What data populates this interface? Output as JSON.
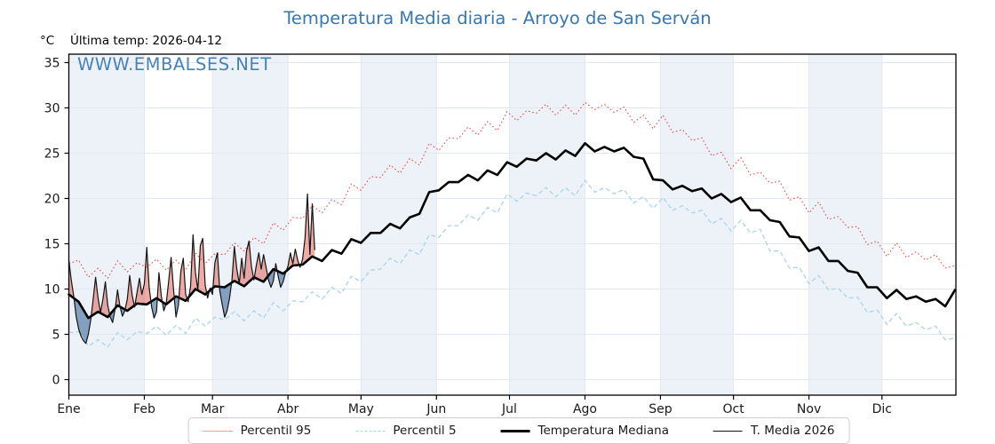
{
  "labels": {
    "unit": "°C",
    "last_temp": "Última temp: 2026-04-12",
    "watermark": "WWW.EMBALSES.NET"
  },
  "colors": {
    "title_blue": "#3877af",
    "p95_red": "#e8403a",
    "p5_blue": "#a9d4e8",
    "median_black": "#000000",
    "t2026_black": "#141414",
    "fill_above": "rgba(220,70,60,0.45)",
    "fill_below": "rgba(60,105,155,0.6)",
    "month_band": "#edf2f8",
    "gridline": "#e2e8ef"
  },
  "legend": {
    "items": [
      {
        "label": "Percentil 95",
        "style": "dotted-red"
      },
      {
        "label": "Percentil 5",
        "style": "dashed-lightblue"
      },
      {
        "label": "Temperatura Mediana",
        "style": "solid-thick-black"
      },
      {
        "label": "T. Media 2026",
        "style": "solid-thin-black"
      }
    ]
  },
  "chart_data": {
    "type": "line",
    "title": "Temperatura Media diaria - Arroyo de San Serván",
    "ylabel": "°C",
    "annotation": "Última temp: 2026-04-12",
    "grid": true,
    "legend_position": "bottom-center",
    "x_categories": [
      "Ene",
      "Feb",
      "Mar",
      "Abr",
      "May",
      "Jun",
      "Jul",
      "Ago",
      "Sep",
      "Oct",
      "Nov",
      "Dic"
    ],
    "month_start_days": [
      1,
      32,
      60,
      91,
      121,
      152,
      182,
      213,
      244,
      274,
      305,
      335
    ],
    "shaded_month_indices": [
      0,
      2,
      4,
      6,
      8,
      10
    ],
    "yticks": [
      0,
      5,
      10,
      15,
      20,
      25,
      30,
      35
    ],
    "ylim": [
      -1.7,
      35.9
    ],
    "xlim_days": [
      1,
      365
    ],
    "series": [
      {
        "name": "Percentil 95",
        "line_style": "dotted",
        "color": "#e8403a",
        "day_start": 1,
        "day_step": 4,
        "values": [
          12.8,
          13.2,
          11.3,
          12.3,
          11.2,
          13.1,
          11.9,
          12.9,
          12.4,
          13.3,
          12.1,
          13.2,
          12.1,
          14.0,
          12.8,
          13.9,
          13.8,
          15.1,
          14.2,
          15.7,
          15.0,
          17.3,
          16.5,
          17.9,
          17.8,
          19.2,
          18.4,
          19.9,
          19.3,
          21.6,
          20.9,
          22.4,
          22.3,
          23.7,
          22.8,
          24.4,
          23.7,
          26.1,
          25.3,
          26.7,
          26.6,
          27.9,
          27.0,
          28.5,
          27.5,
          29.6,
          28.6,
          29.7,
          29.4,
          30.4,
          29.2,
          30.3,
          29.2,
          30.6,
          29.8,
          30.4,
          29.5,
          30.1,
          28.4,
          29.2,
          27.7,
          29.2,
          27.3,
          27.6,
          26.4,
          26.7,
          24.7,
          25.1,
          23.3,
          24.5,
          22.6,
          22.9,
          21.7,
          21.9,
          19.8,
          20.2,
          18.4,
          19.6,
          17.7,
          18.0,
          16.8,
          16.9,
          14.9,
          15.3,
          13.6,
          15.1,
          13.5,
          14.1,
          13.2,
          13.8,
          12.3,
          12.6
        ]
      },
      {
        "name": "Percentil 5",
        "line_style": "dashed",
        "color": "#a9d4e8",
        "day_start": 1,
        "day_step": 4,
        "values": [
          5.2,
          5.3,
          3.7,
          4.4,
          3.6,
          5.2,
          4.4,
          5.3,
          5.1,
          5.9,
          4.9,
          6.0,
          5.1,
          6.8,
          5.9,
          6.9,
          6.6,
          7.5,
          6.5,
          7.6,
          6.8,
          8.5,
          7.6,
          8.7,
          8.6,
          9.7,
          8.9,
          10.2,
          9.5,
          11.4,
          10.8,
          12.1,
          12.2,
          13.4,
          12.8,
          14.3,
          13.8,
          16.0,
          15.7,
          17.0,
          17.0,
          18.2,
          17.6,
          19.0,
          18.4,
          20.5,
          19.7,
          20.6,
          20.3,
          21.2,
          20.2,
          21.2,
          20.3,
          22.0,
          20.7,
          21.2,
          20.5,
          21.0,
          19.5,
          20.2,
          18.9,
          20.1,
          18.7,
          19.2,
          18.4,
          18.7,
          17.2,
          17.8,
          16.4,
          17.6,
          16.2,
          16.6,
          14.2,
          14.2,
          12.3,
          12.4,
          10.6,
          11.5,
          9.9,
          10.1,
          9.0,
          9.1,
          7.4,
          7.7,
          6.1,
          7.3,
          5.9,
          6.3,
          5.5,
          5.9,
          4.4,
          4.6
        ]
      },
      {
        "name": "Temperatura Mediana",
        "line_style": "solid-thick",
        "color": "#000000",
        "day_start": 1,
        "day_step": 4,
        "values": [
          9.4,
          8.6,
          6.8,
          7.5,
          6.9,
          8.2,
          7.6,
          8.4,
          8.3,
          9.0,
          8.3,
          9.2,
          8.7,
          10.0,
          9.4,
          10.3,
          10.2,
          10.9,
          10.3,
          11.3,
          10.8,
          12.2,
          11.7,
          12.6,
          12.7,
          13.6,
          13.1,
          14.3,
          13.9,
          15.5,
          15.1,
          16.2,
          16.2,
          17.2,
          16.7,
          17.9,
          18.3,
          20.7,
          20.9,
          21.8,
          21.8,
          22.6,
          22.0,
          23.1,
          22.6,
          24.0,
          23.5,
          24.4,
          24.2,
          25.0,
          24.3,
          25.3,
          24.7,
          26.1,
          25.2,
          25.7,
          25.2,
          25.6,
          24.6,
          24.4,
          22.1,
          22.0,
          21.0,
          21.4,
          20.8,
          21.1,
          20.0,
          20.5,
          19.6,
          20.1,
          18.7,
          18.7,
          17.6,
          17.4,
          15.8,
          15.7,
          14.2,
          14.6,
          13.1,
          13.1,
          12.0,
          11.8,
          10.2,
          10.2,
          9.0,
          9.9,
          8.9,
          9.2,
          8.6,
          8.9,
          8.1,
          9.9
        ]
      },
      {
        "name": "T. Media 2026",
        "line_style": "solid-thin",
        "color": "#141414",
        "day_start": 1,
        "day_step": 1,
        "fill_vs": "Temperatura Mediana",
        "fill_above_color": "rgba(220,70,60,0.45)",
        "fill_below_color": "rgba(60,105,155,0.6)",
        "values": [
          13.2,
          11.0,
          9.2,
          7.0,
          5.6,
          4.8,
          4.3,
          4.0,
          5.0,
          6.6,
          8.9,
          11.3,
          9.0,
          7.4,
          8.9,
          10.8,
          8.2,
          6.9,
          6.3,
          7.8,
          9.9,
          8.1,
          7.0,
          7.6,
          8.9,
          11.5,
          9.3,
          8.0,
          9.6,
          11.2,
          9.4,
          10.6,
          14.6,
          10.2,
          8.0,
          6.8,
          7.5,
          11.8,
          9.2,
          7.6,
          8.4,
          10.9,
          13.5,
          10.0,
          6.9,
          8.2,
          12.0,
          13.4,
          9.4,
          8.6,
          10.3,
          16.0,
          11.8,
          9.9,
          14.8,
          15.6,
          10.4,
          9.0,
          10.1,
          9.4,
          12.9,
          14.0,
          9.8,
          8.3,
          6.9,
          7.6,
          9.0,
          11.0,
          14.7,
          12.2,
          10.6,
          13.4,
          11.2,
          14.2,
          15.3,
          12.5,
          11.0,
          12.6,
          14.0,
          12.2,
          13.8,
          12.4,
          11.0,
          10.2,
          10.9,
          12.8,
          11.4,
          10.2,
          10.8,
          11.8,
          12.5,
          14.0,
          12.8,
          14.4,
          13.2,
          12.4,
          13.3,
          15.6,
          20.5,
          13.8,
          19.4,
          14.3
        ]
      }
    ]
  }
}
